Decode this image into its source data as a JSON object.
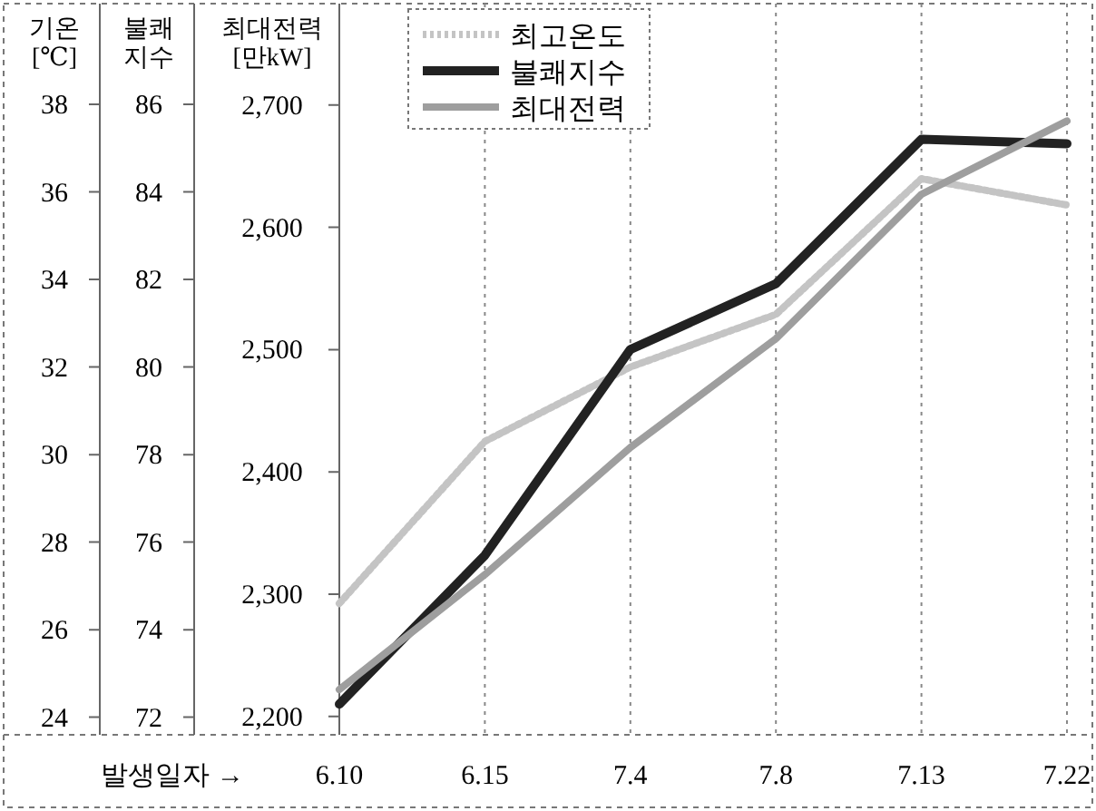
{
  "chart_data": {
    "type": "line",
    "categories": [
      "6.10",
      "6.15",
      "7.4",
      "7.8",
      "7.13",
      "7.22"
    ],
    "xlabel": "발생일자 →",
    "ylabel": "기온\n[℃]",
    "y2label": "불쾌\n지수",
    "y3label": "최대전력\n[만kW]",
    "ylim": [
      23.6,
      40.3
    ],
    "yticks": [
      24,
      26,
      28,
      30,
      32,
      34,
      36,
      38
    ],
    "y2lim": [
      71.6,
      88.3
    ],
    "y2ticks": [
      72,
      74,
      76,
      78,
      80,
      82,
      84,
      86
    ],
    "y3lim": [
      2185,
      2783
    ],
    "y3ticks": [
      {
        "value": 2200,
        "label": "2,200"
      },
      {
        "value": 2300,
        "label": "2,300"
      },
      {
        "value": 2400,
        "label": "2,400"
      },
      {
        "value": 2500,
        "label": "2,500"
      },
      {
        "value": 2600,
        "label": "2,600"
      },
      {
        "value": 2700,
        "label": "2,700"
      }
    ],
    "grid": "x",
    "legend": "top left",
    "series": [
      {
        "name": "최고온도",
        "color": "#c4c4c4",
        "axis": "y",
        "line_style": "dotted",
        "values": [
          26.6,
          30.3,
          32.0,
          33.2,
          36.3,
          35.7
        ]
      },
      {
        "name": "불쾌지수",
        "color": "#222222",
        "axis": "y2",
        "line_style": "solid",
        "values": [
          72.3,
          75.7,
          80.4,
          81.9,
          85.2,
          85.1
        ]
      },
      {
        "name": "최대전력",
        "color": "#9e9e9e",
        "axis": "y3",
        "line_style": "solid",
        "values": [
          2222,
          2316,
          2420,
          2509,
          2627,
          2687
        ]
      }
    ]
  }
}
